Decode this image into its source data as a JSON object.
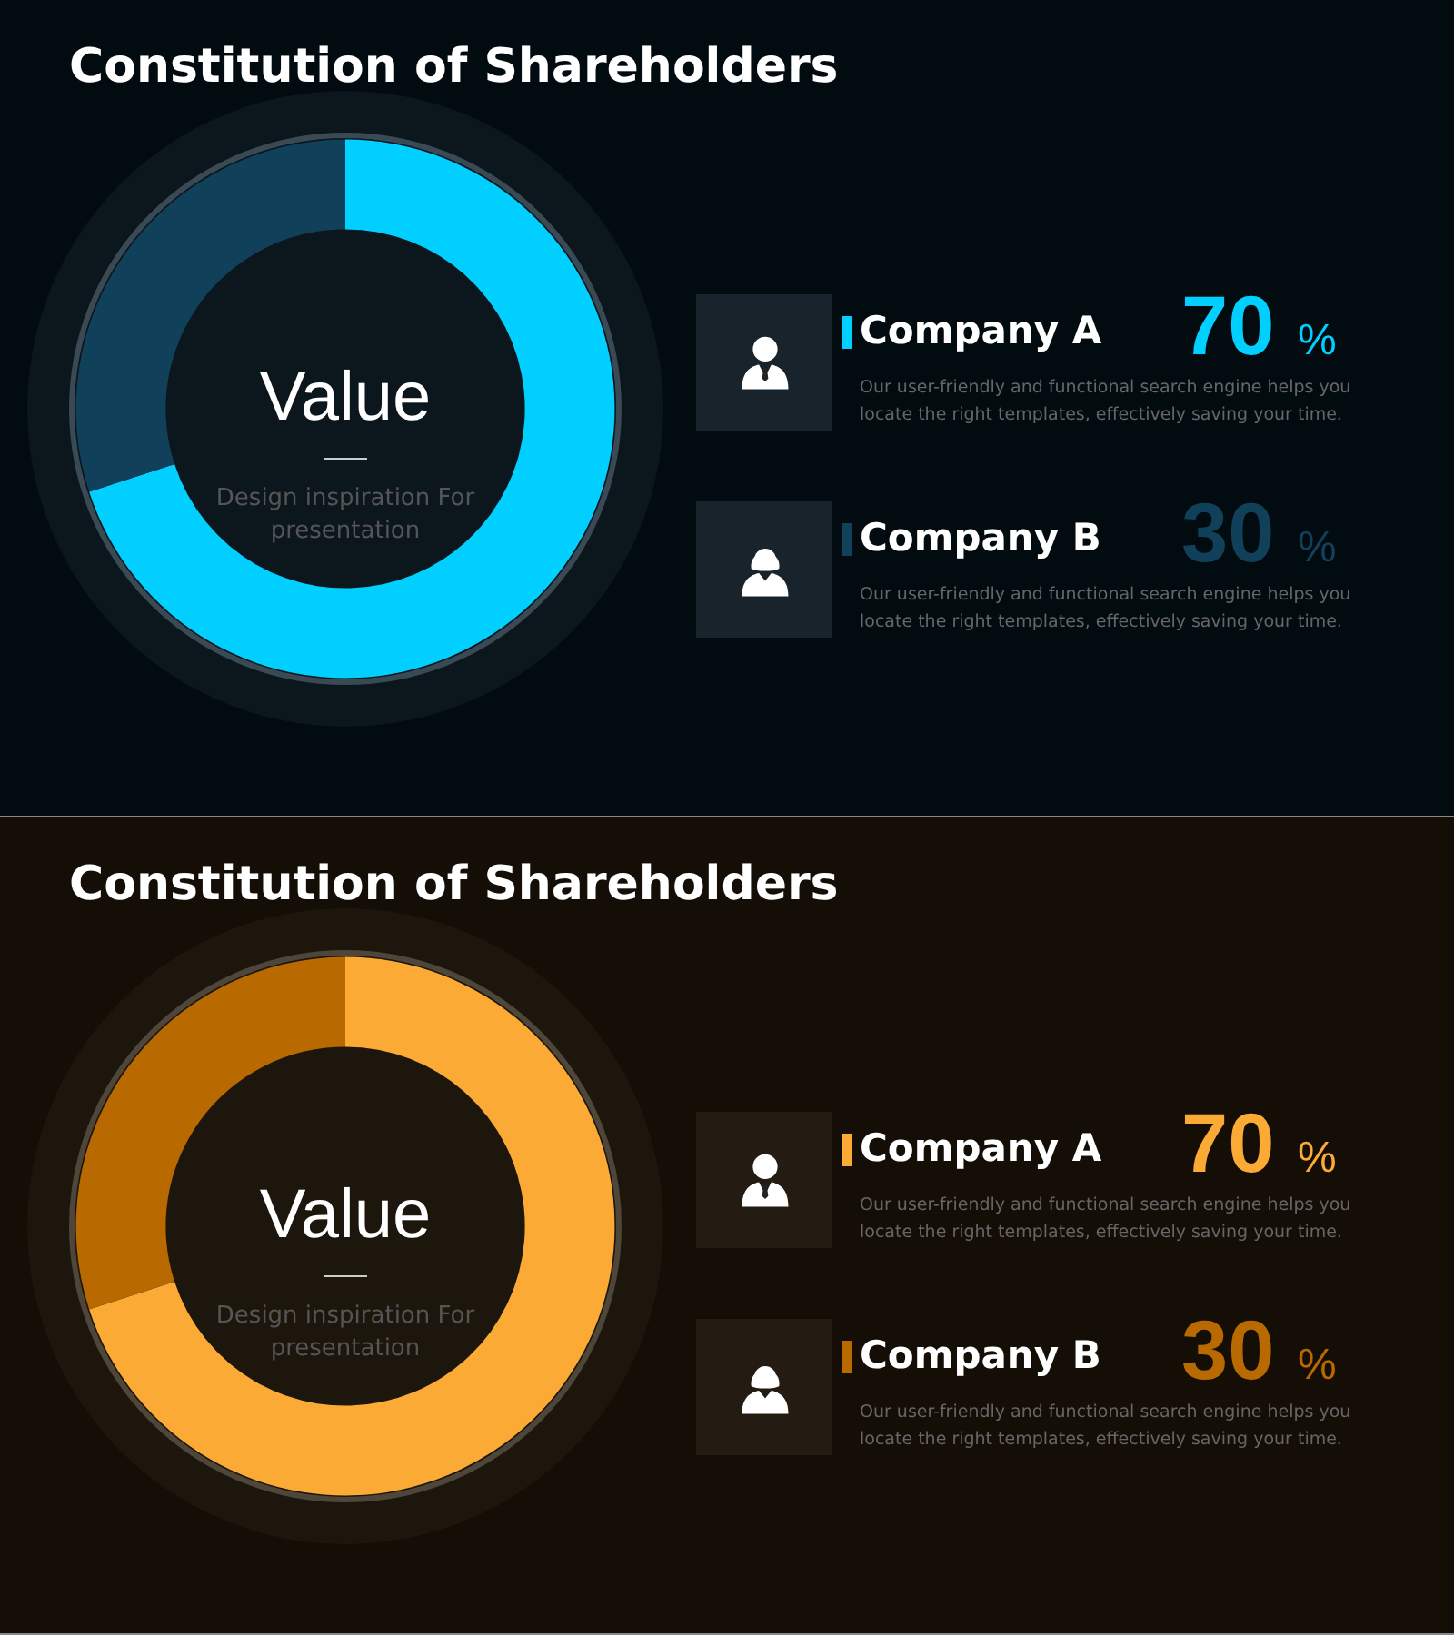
{
  "chart_data": [
    {
      "type": "donut",
      "title": "Constitution of Shareholders",
      "legend": "right",
      "categories": [
        "Company A",
        "Company B"
      ],
      "values": [
        70,
        30
      ],
      "colors": [
        "#00cfff",
        "#11405a"
      ],
      "value_labels": [
        "70 %",
        "30 %"
      ],
      "annotations": [
        "Value",
        "Design inspiration For presentation",
        "Our user-friendly and functional search engine helps you locate the right templates, effectively saving your time.",
        "Our user-friendly and functional search engine helps you locate the right templates, effectively saving your time."
      ]
    },
    {
      "type": "donut",
      "title": "Constitution of Shareholders",
      "legend": "right",
      "categories": [
        "Company A",
        "Company B"
      ],
      "values": [
        70,
        30
      ],
      "colors": [
        "#fbaa35",
        "#b86a00"
      ],
      "value_labels": [
        "70 %",
        "30 %"
      ],
      "annotations": [
        "Value",
        "Design inspiration For presentation",
        "Our user-friendly and functional search engine helps you locate the right templates, effectively saving your time.",
        "Our user-friendly and functional search engine helps you locate the right templates, effectively saving your time."
      ]
    }
  ]
}
